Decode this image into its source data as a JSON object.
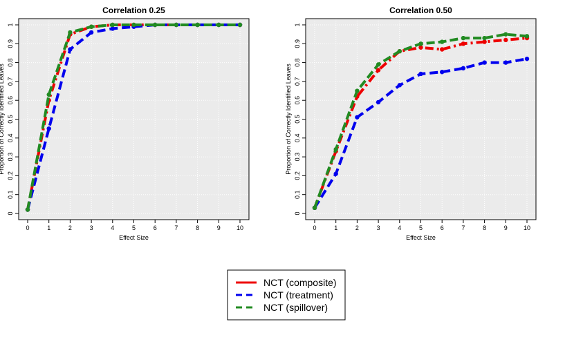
{
  "legend": {
    "items": [
      {
        "label": "NCT (composite)",
        "color": "#ee0000",
        "dash": "solid"
      },
      {
        "label": "NCT (treatment)",
        "color": "#0000ee",
        "dash": "dashed"
      },
      {
        "label": "NCT (spillover)",
        "color": "#228b22",
        "dash": "dashed"
      }
    ]
  },
  "chart_data": [
    {
      "type": "line",
      "title": "Correlation 0.25",
      "xlabel": "Effect Size",
      "ylabel": "Proportion of Correctly Identified Leaves",
      "xlim": [
        0,
        10
      ],
      "ylim": [
        0,
        1
      ],
      "xticks": [
        "0",
        "1",
        "2",
        "3",
        "4",
        "5",
        "6",
        "7",
        "8",
        "9",
        "10"
      ],
      "yticks": [
        "0",
        "0.1",
        "0.2",
        "0.3",
        "0.4",
        "0.5",
        "0.6",
        "0.7",
        "0.8",
        "0.9",
        "1"
      ],
      "grid": true,
      "x": [
        0,
        1,
        2,
        3,
        4,
        5,
        6,
        7,
        8,
        9,
        10
      ],
      "series": [
        {
          "name": "NCT (composite)",
          "color": "#ee0000",
          "values": [
            0.02,
            0.6,
            0.95,
            0.99,
            1.0,
            1.0,
            1.0,
            1.0,
            1.0,
            1.0,
            1.0
          ]
        },
        {
          "name": "NCT (treatment)",
          "color": "#0000ee",
          "values": [
            0.02,
            0.45,
            0.87,
            0.96,
            0.98,
            0.99,
            1.0,
            1.0,
            1.0,
            1.0,
            1.0
          ]
        },
        {
          "name": "NCT (spillover)",
          "color": "#228b22",
          "values": [
            0.02,
            0.63,
            0.96,
            0.99,
            1.0,
            1.0,
            1.0,
            1.0,
            1.0,
            1.0,
            1.0
          ]
        }
      ]
    },
    {
      "type": "line",
      "title": "Correlation 0.50",
      "xlabel": "Effect Size",
      "ylabel": "Proportion of Correctly Identified Leaves",
      "xlim": [
        0,
        10
      ],
      "ylim": [
        0,
        1
      ],
      "xticks": [
        "0",
        "1",
        "2",
        "3",
        "4",
        "5",
        "6",
        "7",
        "8",
        "9",
        "10"
      ],
      "yticks": [
        "0",
        "0.1",
        "0.2",
        "0.3",
        "0.4",
        "0.5",
        "0.6",
        "0.7",
        "0.8",
        "0.9",
        "1"
      ],
      "grid": true,
      "x": [
        0,
        1,
        2,
        3,
        4,
        5,
        6,
        7,
        8,
        9,
        10
      ],
      "series": [
        {
          "name": "NCT (composite)",
          "color": "#ee0000",
          "values": [
            0.03,
            0.33,
            0.62,
            0.76,
            0.86,
            0.88,
            0.87,
            0.9,
            0.91,
            0.92,
            0.93
          ]
        },
        {
          "name": "NCT (treatment)",
          "color": "#0000ee",
          "values": [
            0.03,
            0.21,
            0.51,
            0.59,
            0.68,
            0.74,
            0.75,
            0.77,
            0.8,
            0.8,
            0.82
          ]
        },
        {
          "name": "NCT (spillover)",
          "color": "#228b22",
          "values": [
            0.03,
            0.34,
            0.65,
            0.79,
            0.86,
            0.9,
            0.91,
            0.93,
            0.93,
            0.95,
            0.94
          ]
        }
      ]
    }
  ]
}
